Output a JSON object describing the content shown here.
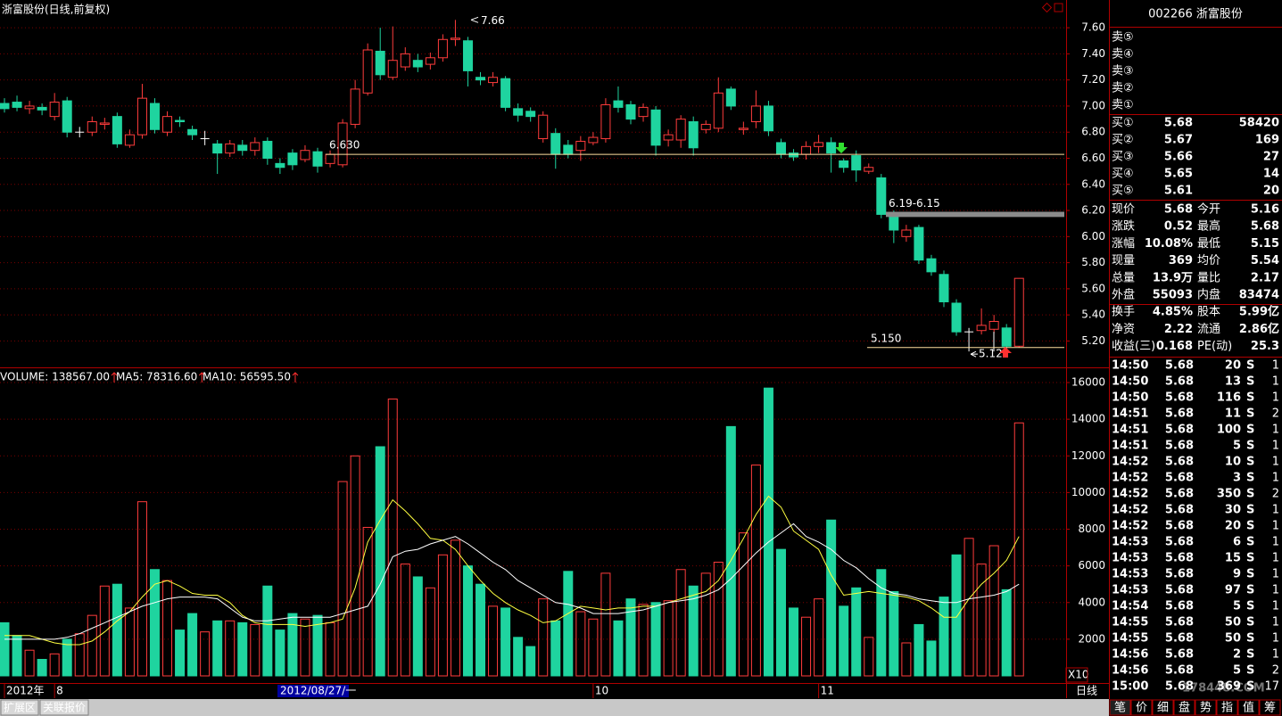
{
  "chart_data": [
    {
      "type": "candlestick",
      "title": "浙富股份(日线,前复权)",
      "up_color": "#ff3c3c",
      "down_color": "#1fd49f",
      "ylim": [
        5.08,
        7.71
      ],
      "yticks": [
        {
          "value": 5.2,
          "label": "5.20"
        },
        {
          "value": 5.4,
          "label": "5.40"
        },
        {
          "value": 5.6,
          "label": "5.60"
        },
        {
          "value": 5.8,
          "label": "5.80"
        },
        {
          "value": 6.0,
          "label": "6.00"
        },
        {
          "value": 6.2,
          "label": "6.20"
        },
        {
          "value": 6.4,
          "label": "6.40"
        },
        {
          "value": 6.6,
          "label": "6.60"
        },
        {
          "value": 6.8,
          "label": "6.80"
        },
        {
          "value": 7.0,
          "label": "7.00"
        },
        {
          "value": 7.2,
          "label": "7.20"
        },
        {
          "value": 7.4,
          "label": "7.40"
        },
        {
          "value": 7.6,
          "label": "7.60"
        }
      ],
      "grid": true,
      "open": [
        7.02,
        7.03,
        6.98,
        6.99,
        6.92,
        7.04,
        6.8,
        6.8,
        6.86,
        6.92,
        6.7,
        6.78,
        7.02,
        6.8,
        6.89,
        6.82,
        6.75,
        6.71,
        6.64,
        6.7,
        6.66,
        6.73,
        6.56,
        6.64,
        6.59,
        6.65,
        6.56,
        6.55,
        6.86,
        7.1,
        7.42,
        7.22,
        7.3,
        7.35,
        7.32,
        7.37,
        7.51,
        7.5,
        7.22,
        7.18,
        7.21,
        6.98,
        6.96,
        6.75,
        6.79,
        6.7,
        6.66,
        6.72,
        6.75,
        7.04,
        7.01,
        6.92,
        6.97,
        6.74,
        6.74,
        6.88,
        6.82,
        6.83,
        7.13,
        6.82,
        6.88,
        7.0,
        6.72,
        6.64,
        6.63,
        6.69,
        6.72,
        6.58,
        6.62,
        6.5,
        6.45,
        6.17,
        6.0,
        6.07,
        5.83,
        5.71,
        5.49,
        5.27,
        5.28,
        5.29,
        5.3,
        5.16
      ],
      "high": [
        7.06,
        7.08,
        7.04,
        7.02,
        7.1,
        7.07,
        6.84,
        6.92,
        6.91,
        6.95,
        6.82,
        7.17,
        7.06,
        6.96,
        6.92,
        6.85,
        6.81,
        6.74,
        6.74,
        6.74,
        6.76,
        6.76,
        6.6,
        6.67,
        6.7,
        6.68,
        6.66,
        6.9,
        7.2,
        7.48,
        7.6,
        7.61,
        7.45,
        7.4,
        7.41,
        7.55,
        7.66,
        7.53,
        7.26,
        7.26,
        7.23,
        7.02,
        6.99,
        6.96,
        6.83,
        6.74,
        6.77,
        6.8,
        7.06,
        7.15,
        7.04,
        7.02,
        7.0,
        6.82,
        6.93,
        6.92,
        6.89,
        7.22,
        7.15,
        6.88,
        7.12,
        7.04,
        6.75,
        6.67,
        6.73,
        6.78,
        6.76,
        6.6,
        6.66,
        6.56,
        6.48,
        6.2,
        6.09,
        6.09,
        5.86,
        5.74,
        5.52,
        5.3,
        5.45,
        5.4,
        5.33,
        5.68
      ],
      "low": [
        6.95,
        6.96,
        6.94,
        6.93,
        6.89,
        6.76,
        6.76,
        6.77,
        6.82,
        6.68,
        6.68,
        6.75,
        6.79,
        6.77,
        6.84,
        6.74,
        6.7,
        6.48,
        6.61,
        6.62,
        6.62,
        6.55,
        6.48,
        6.51,
        6.57,
        6.49,
        6.53,
        6.53,
        6.83,
        7.08,
        7.2,
        7.2,
        7.27,
        7.26,
        7.28,
        7.34,
        7.46,
        7.15,
        7.16,
        7.15,
        6.96,
        6.88,
        6.88,
        6.72,
        6.52,
        6.6,
        6.58,
        6.7,
        6.72,
        6.95,
        6.86,
        6.88,
        6.62,
        6.69,
        6.68,
        6.62,
        6.79,
        6.8,
        6.97,
        6.78,
        6.83,
        6.77,
        6.6,
        6.58,
        6.59,
        6.64,
        6.49,
        6.49,
        6.42,
        6.48,
        6.14,
        5.95,
        5.96,
        5.79,
        5.7,
        5.46,
        5.24,
        5.12,
        5.25,
        5.26,
        5.13,
        5.15
      ],
      "close": [
        6.98,
        6.99,
        7.0,
        6.97,
        7.03,
        6.8,
        6.8,
        6.88,
        6.87,
        6.71,
        6.78,
        7.06,
        6.82,
        6.92,
        6.88,
        6.78,
        6.75,
        6.64,
        6.71,
        6.66,
        6.72,
        6.6,
        6.53,
        6.55,
        6.66,
        6.54,
        6.63,
        6.87,
        7.13,
        7.43,
        7.24,
        7.35,
        7.4,
        7.3,
        7.37,
        7.51,
        7.52,
        7.27,
        7.2,
        7.22,
        6.99,
        6.93,
        6.92,
        6.93,
        6.63,
        6.63,
        6.73,
        6.76,
        7.01,
        6.99,
        6.9,
        6.99,
        6.7,
        6.78,
        6.9,
        6.68,
        6.86,
        7.1,
        7.0,
        6.83,
        7.0,
        6.81,
        6.63,
        6.61,
        6.69,
        6.72,
        6.64,
        6.53,
        6.51,
        6.53,
        6.17,
        6.05,
        6.05,
        5.82,
        5.73,
        5.5,
        5.27,
        5.27,
        5.32,
        5.35,
        5.16,
        5.68
      ],
      "max_label": {
        "text": "7.66",
        "value": 7.66
      },
      "min_label": {
        "text": "5.12",
        "value": 5.12
      },
      "lines": [
        {
          "text": "6.630",
          "value": 6.63
        },
        {
          "text": "5.150",
          "value": 5.15
        }
      ],
      "band": {
        "text": "6.19-6.15",
        "values": [
          6.19,
          6.15
        ]
      }
    },
    {
      "type": "bar",
      "ylim": [
        0,
        16780
      ],
      "yticks": [
        2000,
        4000,
        6000,
        8000,
        10000,
        12000,
        14000,
        16000
      ],
      "grid": true,
      "unit_label": "X10",
      "categories": [
        "2012年",
        null,
        null,
        null,
        "8",
        null,
        null,
        null,
        null,
        null,
        null,
        null,
        null,
        null,
        null,
        null,
        null,
        null,
        null,
        null,
        null,
        null,
        null,
        null,
        null,
        null,
        null,
        null,
        null,
        null,
        null,
        null,
        null,
        null,
        null,
        null,
        null,
        null,
        null,
        null,
        null,
        null,
        null,
        null,
        null,
        null,
        null,
        "10",
        null,
        null,
        null,
        null,
        null,
        null,
        null,
        null,
        null,
        null,
        null,
        null,
        null,
        null,
        null,
        null,
        null,
        "11",
        null,
        null,
        null,
        null,
        null,
        null,
        null,
        null,
        null,
        null,
        null,
        null,
        null,
        null,
        null,
        null
      ],
      "cursor_label": "2012/08/27/一",
      "period": "日线",
      "series": [
        {
          "name": "VOLUME: 138567.00",
          "values": [
            2900,
            2200,
            1400,
            900,
            1200,
            2000,
            2300,
            3300,
            4900,
            5000,
            3700,
            9500,
            5800,
            5200,
            2500,
            3400,
            2400,
            3000,
            3000,
            2900,
            2800,
            4900,
            2500,
            3400,
            3100,
            3300,
            2900,
            10600,
            12000,
            8100,
            12500,
            15100,
            6100,
            5400,
            4800,
            6600,
            7400,
            6000,
            5000,
            3800,
            3700,
            2100,
            1600,
            4200,
            3000,
            5700,
            3500,
            3100,
            5600,
            3000,
            4200,
            3900,
            4000,
            4100,
            5800,
            4900,
            5600,
            6200,
            13600,
            7800,
            11500,
            15700,
            6900,
            3700,
            3200,
            4200,
            8500,
            3800,
            4800,
            2100,
            5800,
            4600,
            1800,
            2800,
            1900,
            4300,
            6600,
            7500,
            6100,
            7100,
            4700,
            13800
          ]
        },
        {
          "name": "MA5: 78316.60",
          "color": "#ffff40",
          "values": [
            2200,
            2200,
            2200,
            2000,
            1800,
            1700,
            1700,
            1900,
            2400,
            3000,
            3500,
            4300,
            5000,
            5200,
            4900,
            4500,
            4400,
            4400,
            4000,
            3300,
            2900,
            2800,
            2800,
            2800,
            2700,
            2800,
            2900,
            3100,
            4800,
            7300,
            8500,
            9600,
            9000,
            8300,
            7500,
            7400,
            6900,
            6000,
            5200,
            4500,
            4000,
            3600,
            3300,
            2900,
            3000,
            3400,
            3800,
            3700,
            3600,
            3700,
            3700,
            3800,
            3800,
            4000,
            4200,
            4400,
            4600,
            5200,
            6300,
            7500,
            8800,
            9800,
            9200,
            7900,
            7400,
            6900,
            5500,
            4400,
            4500,
            4600,
            4500,
            4400,
            4300,
            4100,
            3700,
            3200,
            3200,
            4200,
            5000,
            5600,
            6300,
            7600
          ]
        },
        {
          "name": "MA10: 56595.50",
          "color": "#ffffff",
          "values": [
            2000,
            2000,
            2000,
            2000,
            2000,
            2100,
            2300,
            2600,
            2900,
            3200,
            3500,
            3800,
            4000,
            4200,
            4300,
            4300,
            4300,
            4200,
            3700,
            3200,
            3000,
            3000,
            3100,
            3200,
            3200,
            3200,
            3200,
            3400,
            3600,
            3800,
            5000,
            6500,
            6800,
            6900,
            7200,
            7400,
            7600,
            7200,
            6700,
            6200,
            5800,
            5200,
            4800,
            4400,
            4000,
            3900,
            3700,
            3400,
            3400,
            3400,
            3500,
            3600,
            3800,
            4000,
            4100,
            4200,
            4400,
            4700,
            5300,
            6000,
            6700,
            7300,
            7800,
            8300,
            7600,
            7300,
            6900,
            6300,
            5900,
            5300,
            4800,
            4500,
            4400,
            4200,
            4100,
            4000,
            4000,
            4200,
            4300,
            4400,
            4600,
            5000
          ]
        }
      ]
    }
  ],
  "panel": {
    "header": "002266 浙富股份",
    "sell": [
      "卖⑤",
      "卖④",
      "卖③",
      "卖②",
      "卖①"
    ],
    "buy": [
      [
        "买①",
        "5.68",
        "58420"
      ],
      [
        "买②",
        "5.67",
        "169"
      ],
      [
        "买③",
        "5.66",
        "27"
      ],
      [
        "买④",
        "5.65",
        "14"
      ],
      [
        "买⑤",
        "5.61",
        "20"
      ]
    ],
    "stats": [
      [
        "现价",
        "5.68",
        "今开",
        "5.16"
      ],
      [
        "涨跌",
        "0.52",
        "最高",
        "5.68"
      ],
      [
        "涨幅",
        "10.08%",
        "最低",
        "5.15"
      ],
      [
        "现量",
        "369",
        "均价",
        "5.54"
      ],
      [
        "总量",
        "13.9万",
        "量比",
        "2.17"
      ],
      [
        "外盘",
        "55093",
        "内盘",
        "83474"
      ],
      [
        "换手",
        "4.85%",
        "股本",
        "5.99亿"
      ],
      [
        "净资",
        "2.22",
        "流通",
        "2.86亿"
      ],
      [
        "收益(三)",
        "0.168",
        "PE(动)",
        "25.3"
      ]
    ],
    "trades": [
      [
        "14:50",
        "5.68",
        "20",
        "S",
        "1"
      ],
      [
        "14:50",
        "5.68",
        "13",
        "S",
        "1"
      ],
      [
        "14:50",
        "5.68",
        "116",
        "S",
        "1"
      ],
      [
        "14:51",
        "5.68",
        "11",
        "S",
        "2"
      ],
      [
        "14:51",
        "5.68",
        "100",
        "S",
        "1"
      ],
      [
        "14:51",
        "5.68",
        "5",
        "S",
        "1"
      ],
      [
        "14:52",
        "5.68",
        "10",
        "S",
        "1"
      ],
      [
        "14:52",
        "5.68",
        "3",
        "S",
        "1"
      ],
      [
        "14:52",
        "5.68",
        "350",
        "S",
        "2"
      ],
      [
        "14:52",
        "5.68",
        "30",
        "S",
        "1"
      ],
      [
        "14:52",
        "5.68",
        "20",
        "S",
        "1"
      ],
      [
        "14:53",
        "5.68",
        "6",
        "S",
        "1"
      ],
      [
        "14:53",
        "5.68",
        "15",
        "S",
        "1"
      ],
      [
        "14:53",
        "5.68",
        "9",
        "S",
        "1"
      ],
      [
        "14:53",
        "5.68",
        "97",
        "S",
        "1"
      ],
      [
        "14:54",
        "5.68",
        "5",
        "S",
        "1"
      ],
      [
        "14:55",
        "5.68",
        "50",
        "S",
        "1"
      ],
      [
        "14:55",
        "5.68",
        "50",
        "S",
        "1"
      ],
      [
        "14:56",
        "5.68",
        "2",
        "S",
        "1"
      ],
      [
        "14:56",
        "5.68",
        "5",
        "S",
        "2"
      ],
      [
        "15:00",
        "5.68",
        "369",
        "S",
        "17"
      ]
    ],
    "tabs": [
      "笔",
      "价",
      "细",
      "盘",
      "势",
      "指",
      "值",
      "筹"
    ]
  },
  "footer": {
    "tabs": [
      "扩展区",
      "关联报价"
    ]
  },
  "watermark": "178448.COM"
}
